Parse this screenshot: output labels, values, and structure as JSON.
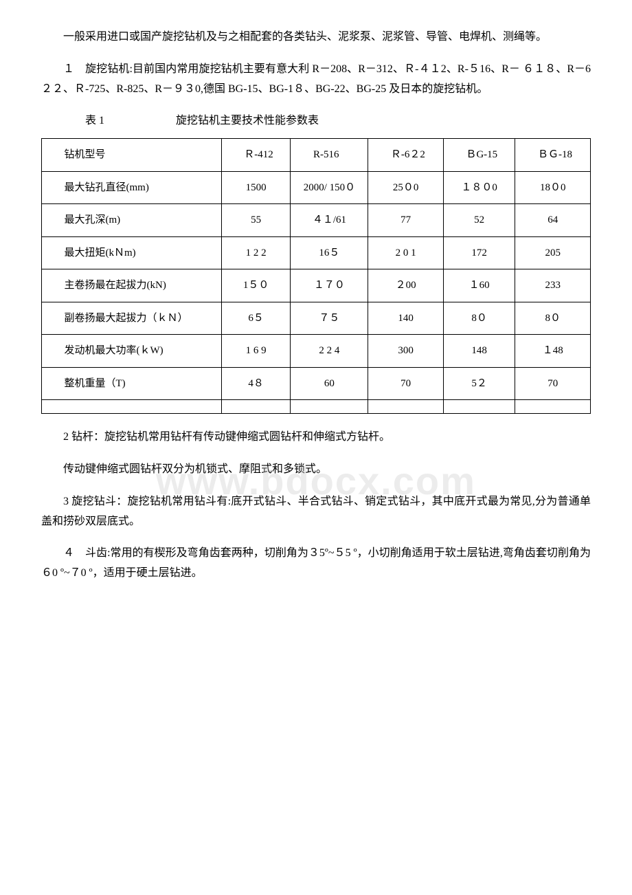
{
  "watermark": "www.bdocx.com",
  "paragraphs": {
    "p1": "一般采用进口或国产旋挖钻机及与之相配套的各类钻头、泥浆泵、泥浆管、导管、电焊机、测绳等。",
    "p2": "１　旋挖钻机:目前国内常用旋挖钻机主要有意大利 R－208、R－312、Ｒ-４１2、R-５16、R－ ６１８、R－6２２、Ｒ-725、R-825、R－９３0,德国 BG-15、BG-1８、BG-22、BG-25 及日本的旋挖钻机。",
    "p3": "2 钻杆：旋挖钻机常用钻杆有传动键伸缩式圆钻杆和伸缩式方钻杆。",
    "p4": "传动键伸缩式圆钻杆双分为机锁式、摩阻式和多锁式。",
    "p5": "3 旋挖钻斗：旋挖钻机常用钻斗有:底开式钻斗、半合式钻斗、销定式钻斗，其中底开式最为常见,分为普通单盖和捞砂双层底式。",
    "p6": "４　斗齿:常用的有楔形及弯角齿套两种，切削角为３5º~５5 º，小切削角适用于软土层钻进,弯角齿套切削角为６0 º~７0 º，适用于硬土层钻进。"
  },
  "table": {
    "caption_label": "表 1",
    "caption_title": "旋挖钻机主要技术性能参数表",
    "columns": [
      "钻机型号",
      "Ｒ-412",
      "R-516",
      "Ｒ-6２2",
      "ＢG-15",
      "ＢＧ-18"
    ],
    "rows": [
      {
        "label": "最大钻孔直径(mm)",
        "values": [
          "1500",
          "2000/ 150０",
          "25０0",
          "１８０0",
          "18０0"
        ]
      },
      {
        "label": "最大孔深(m)",
        "values": [
          "55",
          "４１/61",
          "77",
          "52",
          "64"
        ]
      },
      {
        "label": "最大扭矩(kＮm)",
        "values": [
          "1  2 2",
          "16５",
          "2 0 1",
          "172",
          "205"
        ]
      },
      {
        "label": "主卷扬最在起拔力(kN)",
        "values": [
          "1５０",
          "１７０",
          "２00",
          "１60",
          "233"
        ]
      },
      {
        "label": "副卷扬最大起拔力（ｋＮ）",
        "values": [
          "6５",
          "７５",
          "140",
          "8０",
          "8０"
        ]
      },
      {
        "label": "发动机最大功率(ｋW)",
        "values": [
          "1 6  9",
          "2 2  4",
          "300",
          "148",
          "１48"
        ]
      },
      {
        "label": "整机重量（T)",
        "values": [
          "4８",
          "60",
          "70",
          "5２",
          "70"
        ]
      }
    ]
  }
}
